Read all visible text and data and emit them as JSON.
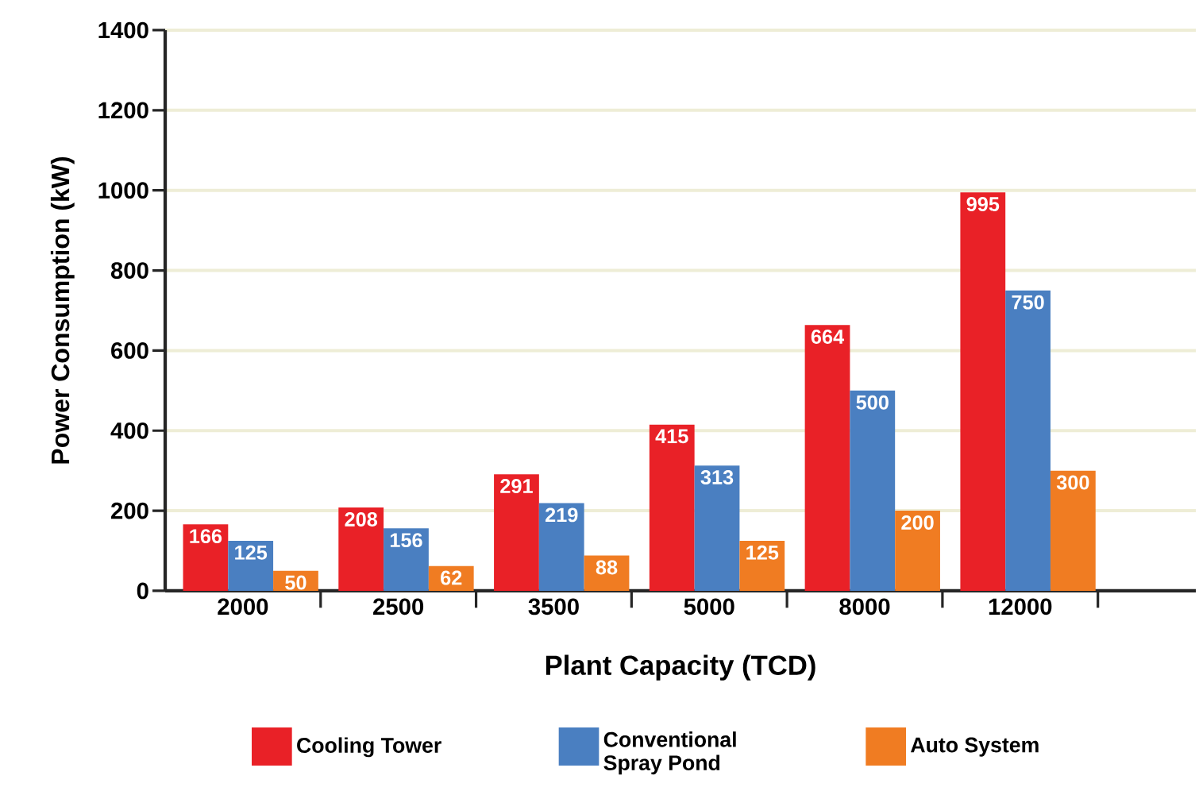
{
  "chart_data": {
    "type": "bar",
    "xlabel": "Plant Capacity (TCD)",
    "ylabel": "Power Consumption (kW)",
    "categories": [
      "2000",
      "2500",
      "3500",
      "5000",
      "8000",
      "12000"
    ],
    "series": [
      {
        "name": "Cooling Tower",
        "color": "#e92127",
        "values": [
          166,
          208,
          291,
          415,
          664,
          995
        ]
      },
      {
        "name": "Conventional Spray Pond",
        "color": "#4a7fc1",
        "values": [
          125,
          156,
          219,
          313,
          500,
          750
        ]
      },
      {
        "name": "Auto System",
        "color": "#f07c22",
        "values": [
          50,
          62,
          88,
          125,
          200,
          300
        ]
      }
    ],
    "ylim": [
      0,
      1400
    ],
    "yticks": [
      0,
      200,
      400,
      600,
      800,
      1000,
      1200,
      1400
    ],
    "grid": "y",
    "legend": "bottom",
    "data_labels": true
  }
}
